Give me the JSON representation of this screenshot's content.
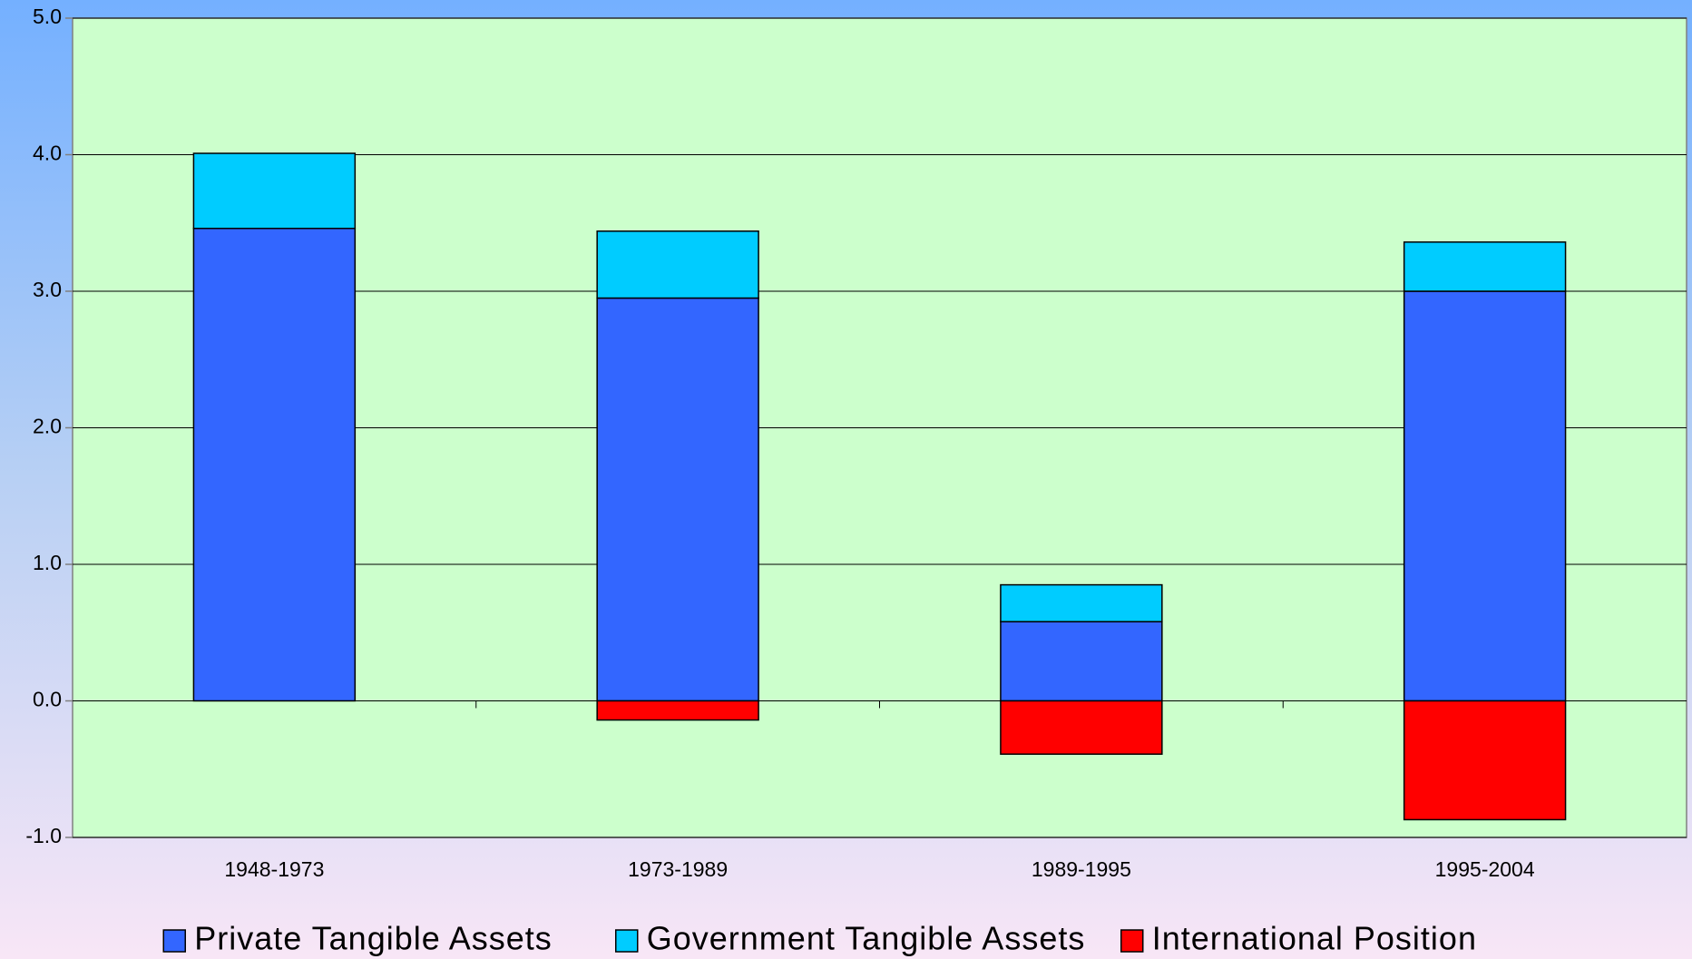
{
  "chart_data": {
    "type": "stacked-bar",
    "categories": [
      "1948-1973",
      "1973-1989",
      "1989-1995",
      "1995-2004"
    ],
    "series": [
      {
        "name": "Private Tangible Assets",
        "color": "#3366ff",
        "values": [
          3.46,
          2.95,
          0.58,
          3.0
        ]
      },
      {
        "name": "Government Tangible Assets",
        "color": "#00ccff",
        "values": [
          0.55,
          0.49,
          0.27,
          0.36
        ]
      },
      {
        "name": "International Position",
        "color": "#ff0000",
        "values": [
          0,
          -0.14,
          -0.39,
          -0.87
        ]
      }
    ],
    "ylim": [
      -1,
      5
    ],
    "yticks": [
      {
        "value": -1,
        "label": "-1.0"
      },
      {
        "value": 0,
        "label": "0.0"
      },
      {
        "value": 1,
        "label": "1.0"
      },
      {
        "value": 2,
        "label": "2.0"
      },
      {
        "value": 3,
        "label": "3.0"
      },
      {
        "value": 4,
        "label": "4.0"
      },
      {
        "value": 5,
        "label": "5.0"
      }
    ],
    "grid": true,
    "legend": "bottom"
  }
}
